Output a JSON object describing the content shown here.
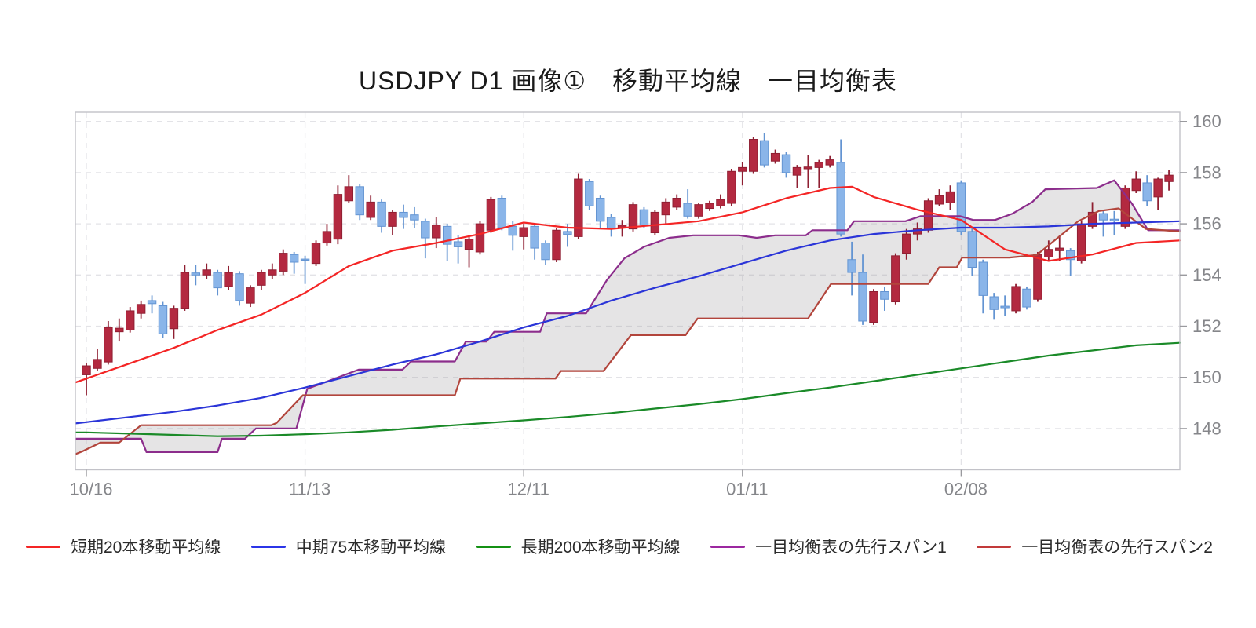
{
  "title": "USDJPY D1 画像①　移動平均線　一目均衡表",
  "legend": {
    "items": [
      {
        "label": "短期20本移動平均線",
        "color": "#f42525"
      },
      {
        "label": "中期75本移動平均線",
        "color": "#2b35e8"
      },
      {
        "label": "長期200本移動平均線",
        "color": "#149114"
      },
      {
        "label": "一目均衡表の先行スパン1",
        "color": "#9c28a0"
      },
      {
        "label": "一目均衡表の先行スパン2",
        "color": "#c23a3a"
      }
    ]
  },
  "chart_data": {
    "type": "candlestick",
    "title": "USDJPY D1 画像①　移動平均線　一目均衡表",
    "x_axis": {
      "ticks": [
        {
          "i": 0,
          "label": "10/16"
        },
        {
          "i": 20,
          "label": "11/13"
        },
        {
          "i": 40,
          "label": "12/11"
        },
        {
          "i": 60,
          "label": "01/11"
        },
        {
          "i": 80,
          "label": "02/08"
        }
      ],
      "num_candles": 100
    },
    "y_axis": {
      "tick_values": [
        160,
        158,
        156,
        154,
        152,
        150,
        148
      ],
      "range": [
        146.4,
        160.4
      ]
    },
    "grid": true,
    "legend_position": "bottom",
    "colors": {
      "bull_fill": "#b32940",
      "bull_stroke": "#8f1f32",
      "bear_fill": "#8ab5e9",
      "bear_stroke": "#6394d2",
      "cloud_fill": "rgba(150,148,150,0.25)",
      "grid": "#e3e3e7",
      "border": "#c2c2c8",
      "tick": "#9a9a9e",
      "axis_text": "#85868a"
    },
    "candles_ohlc": [
      [
        150.1,
        150.55,
        149.3,
        150.45
      ],
      [
        150.35,
        151.1,
        150.25,
        150.7
      ],
      [
        150.6,
        152.2,
        150.5,
        151.95
      ],
      [
        151.78,
        152.3,
        151.4,
        151.92
      ],
      [
        151.85,
        152.75,
        151.75,
        152.6
      ],
      [
        152.5,
        153.0,
        152.3,
        152.85
      ],
      [
        153.0,
        153.2,
        152.5,
        152.88
      ],
      [
        152.8,
        152.95,
        151.55,
        151.7
      ],
      [
        151.9,
        152.8,
        151.5,
        152.7
      ],
      [
        152.7,
        154.4,
        152.6,
        154.1
      ],
      [
        154.08,
        154.4,
        153.6,
        154.0
      ],
      [
        154.0,
        154.45,
        153.85,
        154.2
      ],
      [
        154.1,
        154.2,
        153.2,
        153.5
      ],
      [
        153.55,
        154.35,
        153.4,
        154.1
      ],
      [
        154.05,
        154.15,
        152.8,
        153.0
      ],
      [
        152.9,
        153.6,
        152.75,
        153.5
      ],
      [
        153.6,
        154.2,
        153.4,
        154.1
      ],
      [
        154.0,
        154.45,
        153.85,
        154.2
      ],
      [
        154.15,
        155.0,
        154.0,
        154.85
      ],
      [
        154.8,
        154.9,
        154.05,
        154.5
      ],
      [
        154.62,
        154.75,
        153.65,
        154.58
      ],
      [
        154.45,
        155.35,
        154.35,
        155.25
      ],
      [
        155.25,
        156.0,
        155.15,
        155.7
      ],
      [
        155.4,
        157.5,
        155.2,
        157.15
      ],
      [
        156.9,
        157.9,
        156.8,
        157.45
      ],
      [
        157.45,
        157.55,
        156.15,
        156.35
      ],
      [
        156.25,
        157.1,
        156.15,
        156.85
      ],
      [
        156.85,
        156.95,
        155.65,
        155.9
      ],
      [
        155.9,
        156.55,
        155.55,
        156.45
      ],
      [
        156.45,
        156.75,
        155.8,
        156.25
      ],
      [
        156.35,
        156.65,
        155.85,
        156.15
      ],
      [
        156.1,
        156.2,
        154.65,
        155.45
      ],
      [
        155.45,
        156.25,
        155.05,
        155.95
      ],
      [
        155.9,
        156.0,
        154.55,
        155.2
      ],
      [
        155.3,
        155.55,
        154.45,
        155.1
      ],
      [
        155.0,
        155.5,
        154.3,
        155.4
      ],
      [
        154.9,
        156.1,
        154.8,
        156.0
      ],
      [
        155.75,
        157.05,
        155.65,
        156.95
      ],
      [
        157.0,
        157.1,
        155.75,
        155.85
      ],
      [
        155.9,
        156.1,
        154.95,
        155.55
      ],
      [
        155.5,
        156.0,
        155.0,
        155.85
      ],
      [
        155.9,
        156.0,
        154.6,
        155.05
      ],
      [
        155.25,
        155.35,
        154.4,
        154.6
      ],
      [
        154.6,
        155.85,
        154.5,
        155.75
      ],
      [
        155.7,
        156.0,
        155.1,
        155.58
      ],
      [
        155.5,
        157.95,
        155.4,
        157.75
      ],
      [
        157.65,
        157.75,
        156.55,
        156.7
      ],
      [
        157.0,
        157.1,
        155.85,
        156.1
      ],
      [
        156.25,
        156.4,
        155.5,
        155.82
      ],
      [
        155.85,
        156.15,
        155.5,
        155.95
      ],
      [
        155.8,
        156.85,
        155.7,
        156.75
      ],
      [
        156.55,
        156.65,
        155.85,
        155.95
      ],
      [
        155.65,
        156.55,
        155.55,
        156.45
      ],
      [
        156.35,
        157.0,
        156.0,
        156.85
      ],
      [
        156.65,
        157.15,
        156.55,
        157.0
      ],
      [
        156.8,
        157.35,
        156.2,
        156.3
      ],
      [
        156.3,
        156.8,
        156.2,
        156.75
      ],
      [
        156.6,
        156.9,
        156.5,
        156.8
      ],
      [
        156.7,
        157.15,
        156.6,
        156.95
      ],
      [
        156.8,
        158.15,
        156.7,
        158.05
      ],
      [
        158.05,
        158.4,
        157.5,
        158.2
      ],
      [
        158.05,
        159.4,
        157.95,
        159.3
      ],
      [
        159.25,
        159.55,
        158.2,
        158.3
      ],
      [
        158.45,
        158.9,
        158.35,
        158.75
      ],
      [
        158.7,
        158.8,
        157.8,
        158.0
      ],
      [
        157.9,
        158.3,
        157.4,
        158.2
      ],
      [
        158.15,
        158.7,
        157.4,
        158.22
      ],
      [
        158.2,
        158.5,
        157.4,
        158.4
      ],
      [
        158.3,
        158.65,
        158.2,
        158.5
      ],
      [
        158.4,
        159.3,
        155.5,
        155.6
      ],
      [
        154.6,
        155.3,
        153.2,
        154.1
      ],
      [
        154.1,
        154.8,
        152.05,
        152.2
      ],
      [
        152.15,
        153.45,
        152.05,
        153.35
      ],
      [
        153.35,
        153.55,
        152.6,
        153.05
      ],
      [
        152.95,
        154.85,
        152.85,
        154.75
      ],
      [
        154.85,
        155.8,
        154.6,
        155.6
      ],
      [
        155.6,
        156.05,
        155.35,
        155.8
      ],
      [
        155.75,
        157.0,
        155.65,
        156.9
      ],
      [
        156.77,
        157.35,
        156.7,
        157.1
      ],
      [
        156.82,
        157.5,
        156.55,
        157.25
      ],
      [
        157.6,
        157.7,
        155.55,
        155.7
      ],
      [
        155.7,
        155.85,
        153.95,
        154.3
      ],
      [
        154.5,
        154.6,
        152.5,
        153.2
      ],
      [
        153.15,
        153.3,
        152.25,
        152.65
      ],
      [
        152.78,
        153.2,
        152.4,
        152.72
      ],
      [
        152.6,
        153.65,
        152.5,
        153.55
      ],
      [
        153.45,
        153.55,
        152.65,
        152.75
      ],
      [
        153.05,
        154.9,
        152.95,
        154.8
      ],
      [
        154.7,
        155.35,
        154.55,
        155.0
      ],
      [
        154.95,
        155.55,
        154.55,
        155.05
      ],
      [
        154.95,
        155.05,
        153.95,
        154.6
      ],
      [
        154.55,
        156.1,
        154.45,
        156.0
      ],
      [
        155.9,
        156.85,
        155.8,
        156.45
      ],
      [
        156.4,
        156.55,
        155.5,
        156.15
      ],
      [
        156.18,
        156.5,
        155.55,
        156.12
      ],
      [
        155.9,
        157.5,
        155.8,
        157.4
      ],
      [
        157.3,
        158.05,
        157.2,
        157.75
      ],
      [
        157.6,
        157.9,
        156.7,
        156.9
      ],
      [
        157.05,
        157.8,
        156.55,
        157.75
      ],
      [
        157.65,
        158.1,
        157.3,
        157.9
      ]
    ],
    "series": [
      {
        "name": "短期20本移動平均線",
        "color": "#f42525",
        "width": 2.2,
        "points": [
          [
            -1,
            149.8
          ],
          [
            0,
            149.95
          ],
          [
            4,
            150.55
          ],
          [
            8,
            151.15
          ],
          [
            12,
            151.85
          ],
          [
            16,
            152.45
          ],
          [
            20,
            153.3
          ],
          [
            24,
            154.35
          ],
          [
            28,
            154.95
          ],
          [
            32,
            155.25
          ],
          [
            36,
            155.6
          ],
          [
            40,
            156.05
          ],
          [
            44,
            155.85
          ],
          [
            48,
            155.8
          ],
          [
            52,
            155.95
          ],
          [
            56,
            156.1
          ],
          [
            60,
            156.45
          ],
          [
            64,
            157.0
          ],
          [
            68,
            157.4
          ],
          [
            70,
            157.45
          ],
          [
            72,
            157.05
          ],
          [
            76,
            156.55
          ],
          [
            80,
            156.15
          ],
          [
            84,
            155.0
          ],
          [
            88,
            154.55
          ],
          [
            92,
            154.8
          ],
          [
            96,
            155.25
          ],
          [
            100,
            155.35
          ]
        ]
      },
      {
        "name": "中期75本移動平均線",
        "color": "#2b35d8",
        "width": 2.2,
        "points": [
          [
            -1,
            148.2
          ],
          [
            0,
            148.25
          ],
          [
            4,
            148.45
          ],
          [
            8,
            148.65
          ],
          [
            12,
            148.9
          ],
          [
            16,
            149.2
          ],
          [
            20,
            149.6
          ],
          [
            24,
            150.05
          ],
          [
            28,
            150.5
          ],
          [
            32,
            150.9
          ],
          [
            36,
            151.4
          ],
          [
            40,
            151.95
          ],
          [
            44,
            152.4
          ],
          [
            48,
            153.0
          ],
          [
            52,
            153.5
          ],
          [
            56,
            153.95
          ],
          [
            60,
            154.45
          ],
          [
            64,
            154.95
          ],
          [
            68,
            155.35
          ],
          [
            72,
            155.6
          ],
          [
            76,
            155.75
          ],
          [
            80,
            155.85
          ],
          [
            84,
            155.85
          ],
          [
            88,
            155.9
          ],
          [
            92,
            156.0
          ],
          [
            96,
            156.05
          ],
          [
            100,
            156.1
          ]
        ]
      },
      {
        "name": "長期200本移動平均線",
        "color": "#1a8a28",
        "width": 2.2,
        "points": [
          [
            -1,
            147.85
          ],
          [
            0,
            147.85
          ],
          [
            4,
            147.8
          ],
          [
            8,
            147.75
          ],
          [
            12,
            147.7
          ],
          [
            16,
            147.72
          ],
          [
            20,
            147.78
          ],
          [
            24,
            147.85
          ],
          [
            28,
            147.95
          ],
          [
            32,
            148.08
          ],
          [
            36,
            148.2
          ],
          [
            40,
            148.32
          ],
          [
            44,
            148.45
          ],
          [
            48,
            148.6
          ],
          [
            52,
            148.78
          ],
          [
            56,
            148.95
          ],
          [
            60,
            149.15
          ],
          [
            64,
            149.38
          ],
          [
            68,
            149.6
          ],
          [
            72,
            149.85
          ],
          [
            76,
            150.1
          ],
          [
            80,
            150.35
          ],
          [
            84,
            150.6
          ],
          [
            88,
            150.85
          ],
          [
            92,
            151.05
          ],
          [
            96,
            151.25
          ],
          [
            100,
            151.35
          ]
        ]
      },
      {
        "name": "一目均衡表の先行スパン1",
        "color": "#8c2d8c",
        "width": 2.2,
        "points": [
          [
            -1,
            147.6
          ],
          [
            5,
            147.6
          ],
          [
            5.5,
            147.08
          ],
          [
            12,
            147.08
          ],
          [
            12.4,
            147.6
          ],
          [
            14.5,
            147.6
          ],
          [
            15.5,
            148.0
          ],
          [
            19.2,
            148.0
          ],
          [
            20.2,
            149.55
          ],
          [
            24.9,
            150.3
          ],
          [
            28.9,
            150.3
          ],
          [
            29.7,
            150.62
          ],
          [
            33.7,
            150.62
          ],
          [
            34.7,
            151.4
          ],
          [
            36.6,
            151.4
          ],
          [
            37.3,
            151.78
          ],
          [
            41.5,
            151.78
          ],
          [
            42.1,
            152.5
          ],
          [
            45.7,
            152.5
          ],
          [
            47.6,
            153.8
          ],
          [
            49.2,
            154.65
          ],
          [
            51.0,
            155.1
          ],
          [
            53.3,
            155.45
          ],
          [
            55.5,
            155.55
          ],
          [
            59.7,
            155.55
          ],
          [
            61.3,
            155.45
          ],
          [
            63.0,
            155.55
          ],
          [
            65.8,
            155.55
          ],
          [
            66.4,
            155.75
          ],
          [
            69.6,
            155.75
          ],
          [
            70.2,
            156.1
          ],
          [
            74.9,
            156.1
          ],
          [
            76.3,
            156.3
          ],
          [
            79.9,
            156.3
          ],
          [
            81.1,
            156.15
          ],
          [
            83.1,
            156.15
          ],
          [
            84.7,
            156.4
          ],
          [
            86.5,
            156.85
          ],
          [
            87.7,
            157.35
          ],
          [
            92.4,
            157.4
          ],
          [
            94.0,
            157.7
          ],
          [
            95.6,
            156.8
          ],
          [
            97.1,
            155.75
          ],
          [
            100,
            155.75
          ]
        ]
      },
      {
        "name": "一目均衡表の先行スパン2",
        "color": "#b2453c",
        "width": 2.2,
        "points": [
          [
            -1,
            147.0
          ],
          [
            -0.4,
            147.1
          ],
          [
            1.3,
            147.45
          ],
          [
            3.0,
            147.45
          ],
          [
            5.0,
            148.13
          ],
          [
            16.9,
            148.13
          ],
          [
            17.4,
            148.22
          ],
          [
            19.8,
            149.3
          ],
          [
            33.7,
            149.3
          ],
          [
            34.2,
            149.95
          ],
          [
            42.9,
            149.95
          ],
          [
            43.4,
            150.25
          ],
          [
            47.3,
            150.25
          ],
          [
            49.8,
            151.65
          ],
          [
            54.8,
            151.65
          ],
          [
            55.9,
            152.3
          ],
          [
            66.0,
            152.3
          ],
          [
            68.1,
            153.65
          ],
          [
            77.0,
            153.65
          ],
          [
            78.0,
            154.3
          ],
          [
            79.6,
            154.3
          ],
          [
            80.1,
            154.68
          ],
          [
            84.4,
            154.68
          ],
          [
            86.9,
            154.78
          ],
          [
            90.7,
            156.1
          ],
          [
            92.6,
            156.5
          ],
          [
            94.4,
            156.6
          ],
          [
            95.8,
            156.15
          ],
          [
            96.9,
            155.8
          ],
          [
            100,
            155.7
          ]
        ]
      }
    ],
    "cloud_between_series": [
      3,
      4
    ]
  }
}
